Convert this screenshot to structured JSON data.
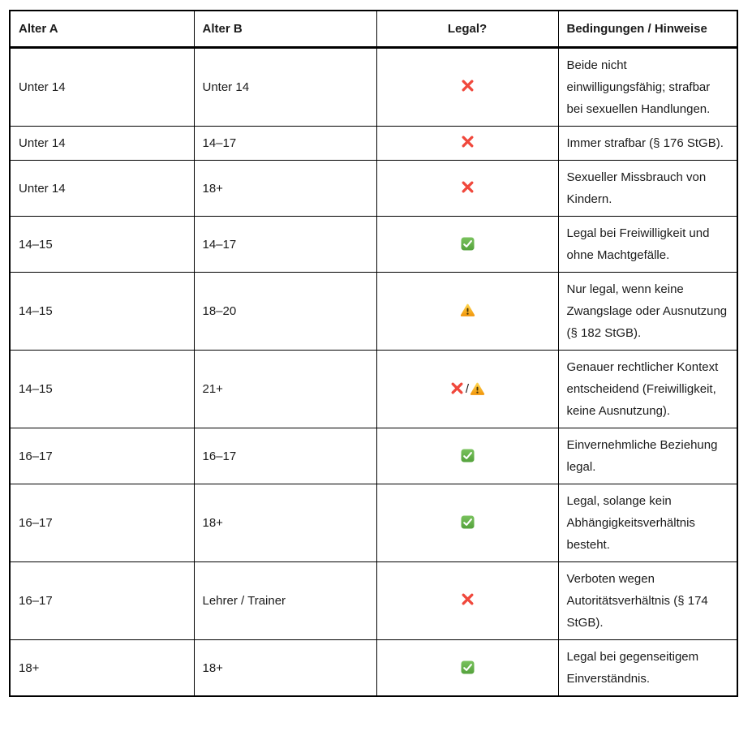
{
  "table": {
    "columns": [
      {
        "label": "Alter A",
        "align": "left"
      },
      {
        "label": "Alter B",
        "align": "left"
      },
      {
        "label": "Legal?",
        "align": "center"
      },
      {
        "label": "Bedingungen / Hinweise",
        "align": "left"
      }
    ],
    "legal_separator": "/",
    "rows": [
      {
        "alter_a": "Unter 14",
        "alter_b": "Unter 14",
        "legal": "illegal",
        "icons": [
          "cross-mark-icon"
        ],
        "note": "Beide nicht einwilligungsfähig; strafbar bei sexuellen Handlungen."
      },
      {
        "alter_a": "Unter 14",
        "alter_b": "14–17",
        "legal": "illegal",
        "icons": [
          "cross-mark-icon"
        ],
        "note": "Immer strafbar (§ 176 StGB)."
      },
      {
        "alter_a": "Unter 14",
        "alter_b": "18+",
        "legal": "illegal",
        "icons": [
          "cross-mark-icon"
        ],
        "note": "Sexueller Missbrauch von Kindern."
      },
      {
        "alter_a": "14–15",
        "alter_b": "14–17",
        "legal": "legal",
        "icons": [
          "check-mark-icon"
        ],
        "note": "Legal bei Freiwilligkeit und ohne Machtgefälle."
      },
      {
        "alter_a": "14–15",
        "alter_b": "18–20",
        "legal": "conditional",
        "icons": [
          "warning-icon"
        ],
        "note": "Nur legal, wenn keine Zwangslage oder Ausnutzung (§ 182 StGB)."
      },
      {
        "alter_a": "14–15",
        "alter_b": "21+",
        "legal": "illegal-or-conditional",
        "icons": [
          "cross-mark-icon",
          "warning-icon"
        ],
        "note": "Genauer rechtlicher Kontext entscheidend (Freiwilligkeit, keine Ausnutzung)."
      },
      {
        "alter_a": "16–17",
        "alter_b": "16–17",
        "legal": "legal",
        "icons": [
          "check-mark-icon"
        ],
        "note": "Einvernehmliche Beziehung legal."
      },
      {
        "alter_a": "16–17",
        "alter_b": "18+",
        "legal": "legal",
        "icons": [
          "check-mark-icon"
        ],
        "note": "Legal, solange kein Abhängigkeitsverhältnis besteht."
      },
      {
        "alter_a": "16–17",
        "alter_b": "Lehrer / Trainer",
        "legal": "illegal",
        "icons": [
          "cross-mark-icon"
        ],
        "note": "Verboten wegen Autoritätsverhältnis (§ 174 StGB)."
      },
      {
        "alter_a": "18+",
        "alter_b": "18+",
        "legal": "legal",
        "icons": [
          "check-mark-icon"
        ],
        "note": "Legal bei gegenseitigem Einverständnis."
      }
    ]
  },
  "icons": {
    "cross-mark-icon": {
      "glyph": "❌",
      "color": "#F0483C"
    },
    "check-mark-icon": {
      "glyph": "✅",
      "color_top": "#79C25D",
      "color_bottom": "#54A23C",
      "check_color": "#FFFFFF"
    },
    "warning-icon": {
      "glyph": "⚠️",
      "color_top": "#FDD24A",
      "color_bottom": "#F2990F",
      "exclamation_color": "#4A3505"
    }
  },
  "colors": {
    "text": "#1B1B1B",
    "border": "#000000",
    "background": "#FFFFFF"
  }
}
